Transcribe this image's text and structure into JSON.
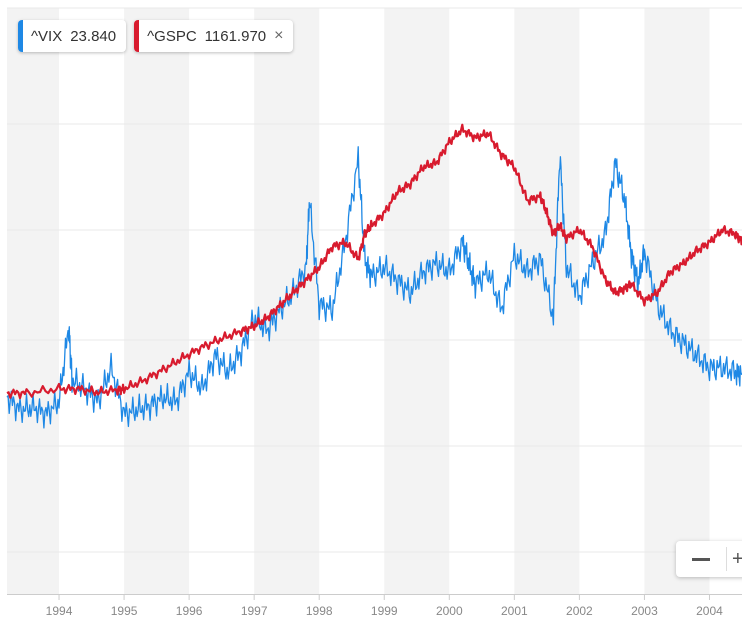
{
  "legend": {
    "vix_symbol": "^VIX",
    "vix_value": "23.840",
    "gspc_symbol": "^GSPC",
    "gspc_value": "1161.970",
    "close_glyph": "×"
  },
  "zoom": {
    "minus_icon": "minus-icon",
    "plus_icon": "plus-icon",
    "plus_glyph": "+"
  },
  "colors": {
    "vix": "#1e88e5",
    "gspc": "#d81b2e",
    "band": "#f3f3f3",
    "grid": "#e9e9e9",
    "axis": "#cccccc",
    "tick": "#888888"
  },
  "chart_data": {
    "type": "line",
    "title": "",
    "xlabel": "",
    "ylabel": "",
    "xlim": [
      1993.2,
      2004.5
    ],
    "x_ticks": [
      "1994",
      "1995",
      "1996",
      "1997",
      "1998",
      "1999",
      "2000",
      "2001",
      "2002",
      "2003",
      "2004"
    ],
    "alternating_year_bands": true,
    "grid": "horizontal",
    "legend_placement": "top-left",
    "series": [
      {
        "name": "^VIX",
        "x": [
          1993.2,
          1993.4,
          1993.6,
          1993.8,
          1994.0,
          1994.15,
          1994.2,
          1994.4,
          1994.6,
          1994.8,
          1995.0,
          1995.2,
          1995.4,
          1995.6,
          1995.8,
          1996.0,
          1996.2,
          1996.4,
          1996.6,
          1996.8,
          1997.0,
          1997.2,
          1997.4,
          1997.6,
          1997.8,
          1997.85,
          1998.0,
          1998.2,
          1998.4,
          1998.6,
          1998.7,
          1998.8,
          1999.0,
          1999.2,
          1999.4,
          1999.6,
          1999.8,
          2000.0,
          2000.2,
          2000.3,
          2000.4,
          2000.6,
          2000.8,
          2001.0,
          2001.2,
          2001.4,
          2001.6,
          2001.7,
          2001.8,
          2002.0,
          2002.2,
          2002.4,
          2002.55,
          2002.7,
          2002.8,
          2002.9,
          2003.0,
          2003.2,
          2003.4,
          2003.6,
          2003.8,
          2004.0,
          2004.2,
          2004.4,
          2004.5
        ],
        "y": [
          235,
          220,
          223,
          215,
          230,
          320,
          255,
          245,
          230,
          270,
          215,
          220,
          225,
          235,
          230,
          265,
          245,
          285,
          265,
          290,
          330,
          315,
          340,
          360,
          390,
          470,
          345,
          340,
          420,
          520,
          400,
          380,
          390,
          375,
          360,
          385,
          395,
          385,
          420,
          395,
          370,
          385,
          340,
          405,
          385,
          400,
          330,
          525,
          390,
          355,
          395,
          430,
          515,
          470,
          405,
          370,
          410,
          345,
          315,
          300,
          285,
          270,
          270,
          265,
          262
        ]
      },
      {
        "name": "^GSPC",
        "x": [
          1993.2,
          1993.5,
          1994.0,
          1994.3,
          1994.6,
          1994.9,
          1995.0,
          1995.3,
          1995.6,
          1995.9,
          1996.2,
          1996.5,
          1996.8,
          1997.0,
          1997.2,
          1997.4,
          1997.6,
          1997.8,
          1998.0,
          1998.2,
          1998.4,
          1998.6,
          1998.7,
          1998.8,
          1999.0,
          1999.2,
          1999.4,
          1999.6,
          1999.8,
          2000.0,
          2000.2,
          2000.4,
          2000.6,
          2000.8,
          2001.0,
          2001.2,
          2001.4,
          2001.5,
          2001.6,
          2001.7,
          2001.8,
          2002.0,
          2002.2,
          2002.4,
          2002.55,
          2002.7,
          2002.8,
          2003.0,
          2003.2,
          2003.4,
          2003.6,
          2003.8,
          2004.0,
          2004.2,
          2004.4,
          2004.5
        ],
        "y": [
          240,
          240,
          245,
          245,
          241,
          244,
          245,
          255,
          268,
          282,
          295,
          305,
          314,
          320,
          330,
          345,
          360,
          375,
          390,
          415,
          420,
          400,
          430,
          440,
          455,
          480,
          490,
          510,
          515,
          540,
          555,
          545,
          550,
          525,
          510,
          470,
          475,
          455,
          430,
          440,
          425,
          435,
          415,
          375,
          360,
          365,
          370,
          350,
          360,
          385,
          395,
          410,
          420,
          435,
          430,
          420
        ]
      }
    ]
  }
}
